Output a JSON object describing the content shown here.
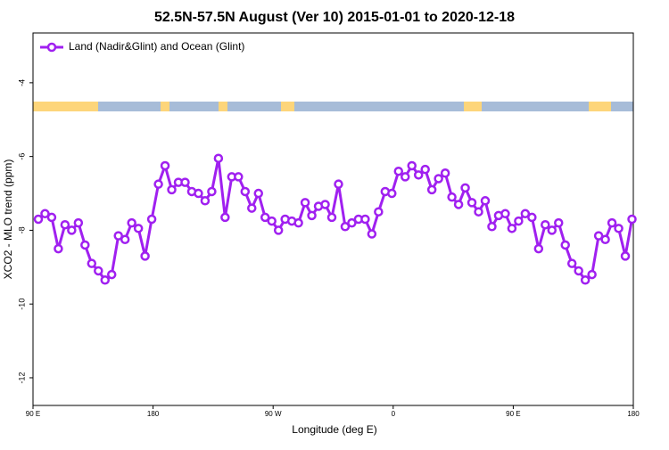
{
  "chart_data": {
    "type": "line",
    "title": "52.5N-57.5N August (Ver 10)   2015-01-01 to 2020-12-18",
    "x_label": "Longitude (deg E)",
    "y_label": "XCO2 - MLO trend (ppm)",
    "x": [
      94,
      99,
      104,
      109,
      114,
      119,
      124,
      129,
      134,
      139,
      144,
      149,
      154,
      159,
      164,
      169,
      174,
      179,
      184,
      189,
      194,
      199,
      204,
      209,
      214,
      219,
      224,
      229,
      234,
      239,
      244,
      249,
      254,
      259,
      264,
      269,
      274,
      279,
      284,
      289,
      294,
      299,
      304,
      309,
      314,
      319,
      324,
      329,
      334,
      339,
      344,
      349,
      354,
      359,
      364,
      369,
      374,
      379,
      384,
      389,
      394,
      399,
      404,
      409,
      414,
      419,
      424,
      429,
      434,
      439,
      444,
      449,
      454,
      459,
      464,
      469,
      474,
      479,
      484,
      489,
      494,
      499,
      504,
      509,
      514,
      519,
      524,
      529,
      534,
      539
    ],
    "series": [
      {
        "name": "Land (Nadir&Glint) and Ocean (Glint)",
        "color": "#a020f0",
        "values": [
          -7.7,
          -7.55,
          -7.65,
          -8.5,
          -7.85,
          -8.0,
          -7.8,
          -8.4,
          -8.9,
          -9.1,
          -9.35,
          -9.2,
          -8.15,
          -8.25,
          -7.8,
          -7.95,
          -8.7,
          -7.7,
          -6.75,
          -6.25,
          -6.9,
          -6.7,
          -6.7,
          -6.95,
          -7.0,
          -7.2,
          -6.95,
          -6.05,
          -7.65,
          -6.55,
          -6.55,
          -6.95,
          -7.4,
          -7.0,
          -7.65,
          -7.75,
          -8.0,
          -7.7,
          -7.75,
          -7.8,
          -7.25,
          -7.6,
          -7.35,
          -7.3,
          -7.65,
          -6.75,
          -7.9,
          -7.8,
          -7.7,
          -7.7,
          -8.1,
          -7.5,
          -6.95,
          -7.0,
          -6.4,
          -6.55,
          -6.25,
          -6.5,
          -6.35,
          -6.9,
          -6.6,
          -6.45,
          -7.1,
          -7.3,
          -6.85,
          -7.25,
          -7.5,
          -7.2,
          -7.9,
          -7.6,
          -7.55,
          -7.95,
          -7.75,
          -7.55,
          -7.65,
          -8.5,
          -7.85,
          -8.0,
          -7.8,
          -8.4,
          -8.9,
          -9.1,
          -9.35,
          -9.2,
          -8.15,
          -8.25,
          -7.8,
          -7.95,
          -8.7,
          -7.7
        ]
      }
    ],
    "xlim": [
      90,
      540
    ],
    "xticks": [
      {
        "value": 90,
        "label": "90 E"
      },
      {
        "value": 180,
        "label": "180"
      },
      {
        "value": 270,
        "label": "90 W"
      },
      {
        "value": 360,
        "label": "0"
      },
      {
        "value": 450,
        "label": "90 E"
      },
      {
        "value": 540,
        "label": "180"
      }
    ],
    "ylim": [
      -12.75,
      -2.65
    ],
    "yticks": [
      -12,
      -10,
      -8,
      -6,
      -4
    ],
    "legend": "top-left"
  }
}
